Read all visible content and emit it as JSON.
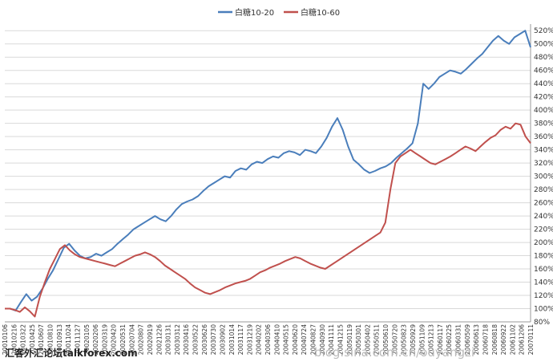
{
  "chart_data": {
    "type": "line",
    "title": "",
    "xlabel": "",
    "ylabel": "",
    "ylim": [
      80,
      530
    ],
    "y_ticks": [
      "80%",
      "100%",
      "120%",
      "140%",
      "160%",
      "180%",
      "200%",
      "220%",
      "240%",
      "260%",
      "280%",
      "300%",
      "320%",
      "340%",
      "360%",
      "380%",
      "400%",
      "420%",
      "440%",
      "460%",
      "480%",
      "500%",
      "520%"
    ],
    "x_ticks": [
      "20010106",
      "20010216",
      "20010322",
      "20010425",
      "20010607",
      "20010810",
      "20010913",
      "20011024",
      "20011127",
      "20020105",
      "20020206",
      "20020319",
      "20020420",
      "20020531",
      "20020704",
      "20020807",
      "20020919",
      "20021226",
      "20030131",
      "20030312",
      "20030416",
      "20030522",
      "20030626",
      "20030730",
      "20030902",
      "20031014",
      "20031117",
      "20031219",
      "20040202",
      "20040306",
      "20040410",
      "20040515",
      "20040620",
      "20040724",
      "20040827",
      "20040930",
      "20041111",
      "20041215",
      "20050119",
      "20050301",
      "20050402",
      "20050511",
      "20050610",
      "20050720",
      "20050823",
      "20050929",
      "20051109",
      "20051213",
      "20060117",
      "20060225",
      "20060331",
      "20060509",
      "20060613",
      "20060718",
      "20060818",
      "20060922",
      "20061102",
      "20061206",
      "20070111"
    ],
    "legend_position": "top",
    "grid": true,
    "series": [
      {
        "name": "白糖10-20",
        "color": "#4a7ebb",
        "values": [
          100,
          100,
          97,
          110,
          122,
          112,
          118,
          130,
          145,
          158,
          175,
          192,
          198,
          188,
          180,
          176,
          178,
          183,
          180,
          185,
          190,
          198,
          205,
          212,
          220,
          225,
          230,
          235,
          240,
          235,
          232,
          240,
          250,
          258,
          262,
          265,
          270,
          278,
          285,
          290,
          295,
          300,
          298,
          308,
          312,
          310,
          318,
          322,
          320,
          326,
          330,
          328,
          335,
          338,
          336,
          332,
          340,
          338,
          335,
          345,
          358,
          375,
          388,
          370,
          345,
          325,
          318,
          310,
          305,
          308,
          312,
          315,
          320,
          328,
          335,
          342,
          350,
          380,
          440,
          432,
          440,
          450,
          455,
          460,
          458,
          455,
          462,
          470,
          478,
          485,
          495,
          505,
          512,
          505,
          500,
          510,
          515,
          520,
          495
        ]
      },
      {
        "name": "白糖10-60",
        "color": "#c0504d",
        "values": [
          100,
          100,
          98,
          95,
          102,
          96,
          88,
          118,
          140,
          160,
          175,
          190,
          196,
          188,
          182,
          178,
          176,
          174,
          172,
          170,
          168,
          166,
          164,
          168,
          172,
          176,
          180,
          182,
          185,
          182,
          178,
          172,
          165,
          160,
          155,
          150,
          145,
          138,
          132,
          128,
          124,
          122,
          125,
          128,
          132,
          135,
          138,
          140,
          142,
          145,
          150,
          155,
          158,
          162,
          165,
          168,
          172,
          175,
          178,
          176,
          172,
          168,
          165,
          162,
          160,
          165,
          170,
          175,
          180,
          185,
          190,
          195,
          200,
          205,
          210,
          215,
          230,
          280,
          320,
          330,
          335,
          340,
          335,
          330,
          325,
          320,
          318,
          322,
          326,
          330,
          335,
          340,
          345,
          342,
          338,
          345,
          352,
          358,
          362,
          370,
          375,
          372,
          380,
          378,
          360,
          350
        ]
      }
    ]
  },
  "watermark": {
    "left_text": "汇客外汇论坛talkforex.com",
    "right_text": "blog.sina.com.cn/ouyangzi"
  }
}
